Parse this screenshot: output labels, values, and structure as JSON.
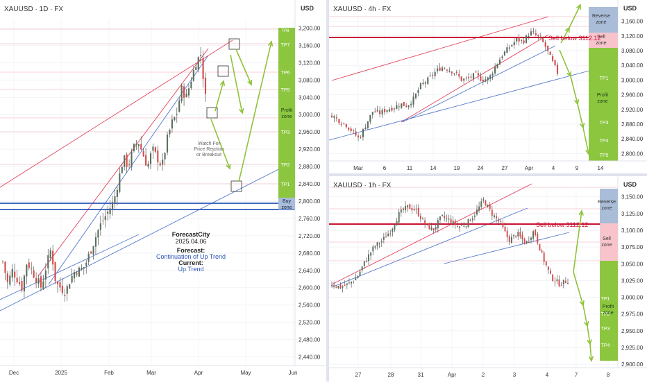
{
  "colors": {
    "bull": "#5a6f5d",
    "bear": "#d84b4b",
    "wick": "#555555",
    "channel_red": "#e0435a",
    "trend_blue": "#5577cc",
    "buy_line": "#2a55b8",
    "tp_green": "#8cc63f",
    "tp_label": "#ffffff",
    "sell_zone": "#f7c4cc",
    "reverse_zone": "#a9bcd8",
    "sell_line": "#cc1133",
    "hline_red": "#f0a3ad",
    "arrow": "#8fc23a",
    "forecast_blue": "#2a55b8",
    "axis_text": "#333333"
  },
  "panels": {
    "daily": {
      "title": "XAUUSD · 1D · FX",
      "currency": "USD",
      "price_ticks": [
        "3,200.00",
        "3,160.00",
        "3,120.00",
        "3,080.00",
        "3,040.00",
        "3,000.00",
        "2,960.00",
        "2,920.00",
        "2,880.00",
        "2,840.00",
        "2,800.00",
        "2,760.00",
        "2,720.00",
        "2,680.00",
        "2,640.00",
        "2,600.00",
        "2,560.00",
        "2,520.00",
        "2,480.00",
        "2,440.00"
      ],
      "time_ticks": [
        "Dec",
        "2025",
        "Feb",
        "Mar",
        "Apr",
        "May",
        "Jun"
      ],
      "tp_labels": [
        "TP7",
        "TP6",
        "TP5",
        "TP3",
        "TP2",
        "TP1"
      ],
      "profit_zone": [
        "Profit",
        "zone"
      ],
      "buy_zone": [
        "Buy",
        "zone"
      ],
      "watch_note": [
        "Watch For",
        "Price Rejction",
        "or Breakout"
      ],
      "forecast": {
        "brand": "ForecastCity",
        "date": "2025.04.06",
        "forecast_label": "Forecast:",
        "forecast_value": "Continuation of Up Trend",
        "current_label": "Current:",
        "current_value": "Up Trend"
      }
    },
    "h4": {
      "title": "XAUUSD · 4h · FX",
      "currency": "USD",
      "price_ticks": [
        "3,160.00",
        "3,120.00",
        "3,080.00",
        "3,040.00",
        "3,000.00",
        "2,960.00",
        "2,920.00",
        "2,880.00",
        "2,840.00",
        "2,800.00"
      ],
      "time_ticks": [
        "Mar",
        "6",
        "11",
        "14",
        "19",
        "24",
        "27",
        "Apr",
        "4",
        "9",
        "14"
      ],
      "reverse_zone": [
        "Reverse",
        "zone"
      ],
      "sell_zone": [
        "Sell",
        "zone"
      ],
      "sell_note": "Sell below 3112.12",
      "tp_labels": [
        "TP1",
        "TP3",
        "TP4",
        "TP5"
      ],
      "profit_zone": [
        "Profit",
        "zone"
      ]
    },
    "h1": {
      "title": "XAUUSD · 1h · FX",
      "currency": "USD",
      "price_ticks": [
        "3,150.00",
        "3,125.00",
        "3,100.00",
        "3,075.00",
        "3,050.00",
        "3,025.00",
        "3,000.00",
        "2,975.00",
        "2,950.00",
        "2,925.00",
        "2,900.00"
      ],
      "time_ticks": [
        "27",
        "28",
        "31",
        "Apr",
        "2",
        "3",
        "4",
        "7",
        "8"
      ],
      "reverse_zone": [
        "Reverse",
        "zone"
      ],
      "sell_zone": [
        "Sell",
        "zone"
      ],
      "sell_note": "Sell below 3112.12",
      "tp_labels": [
        "TP1",
        "TP2",
        "TP3",
        "TP4"
      ],
      "profit_zone": [
        "Profit",
        "zone"
      ]
    }
  },
  "chart_data": [
    {
      "type": "candlestick",
      "title": "XAUUSD · 1D · FX",
      "ylabel": "USD",
      "ylim": [
        2420,
        3220
      ],
      "x_labels": [
        "Dec",
        "2025",
        "Feb",
        "Mar",
        "Apr",
        "May",
        "Jun"
      ],
      "annotations": [
        "TP1",
        "TP2",
        "TP3",
        "TP5",
        "TP6",
        "TP7",
        "Profit zone",
        "Buy zone",
        "Watch For Price Rejction or Breakout"
      ],
      "close_path": [
        2660,
        2610,
        2640,
        2620,
        2600,
        2660,
        2640,
        2620,
        2600,
        2650,
        2690,
        2610,
        2600,
        2590,
        2620,
        2640,
        2640,
        2650,
        2680,
        2710,
        2740,
        2760,
        2780,
        2800,
        2850,
        2900,
        2880,
        2920,
        2940,
        2910,
        2880,
        2920,
        2900,
        2880,
        2940,
        2980,
        3000,
        3060,
        3040,
        3080,
        3120,
        3140,
        3040
      ]
    },
    {
      "type": "candlestick",
      "title": "XAUUSD · 4h · FX",
      "ylabel": "USD",
      "ylim": [
        2780,
        3180
      ],
      "x_labels": [
        "Mar",
        "6",
        "11",
        "14",
        "19",
        "24",
        "27",
        "Apr",
        "4",
        "9",
        "14"
      ],
      "key_level": 3112.12,
      "annotations": [
        "Reverse zone",
        "Sell zone",
        "Sell below 3112.12",
        "Profit zone",
        "TP1",
        "TP3",
        "TP4",
        "TP5"
      ],
      "close_path": [
        2905,
        2890,
        2880,
        2860,
        2840,
        2880,
        2915,
        2910,
        2920,
        2925,
        2935,
        2930,
        2950,
        2985,
        3000,
        3020,
        3035,
        3030,
        3020,
        3000,
        3005,
        3015,
        3000,
        3005,
        3040,
        3070,
        3090,
        3110,
        3105,
        3130,
        3120,
        3100,
        3060,
        3020
      ]
    },
    {
      "type": "candlestick",
      "title": "XAUUSD · 1h · FX",
      "ylabel": "USD",
      "ylim": [
        2895,
        3160
      ],
      "x_labels": [
        "27",
        "28",
        "31",
        "Apr",
        "2",
        "3",
        "4",
        "7",
        "8"
      ],
      "key_level": 3112.12,
      "annotations": [
        "Reverse zone",
        "Sell zone",
        "Sell below 3112.12",
        "Profit zone",
        "TP1",
        "TP2",
        "TP3",
        "TP4"
      ],
      "close_path": [
        3020,
        3015,
        3020,
        3030,
        3055,
        3075,
        3085,
        3100,
        3125,
        3135,
        3130,
        3110,
        3100,
        3120,
        3115,
        3105,
        3110,
        3125,
        3145,
        3125,
        3110,
        3085,
        3095,
        3080,
        3100,
        3060,
        3030,
        3020,
        3025
      ]
    }
  ]
}
